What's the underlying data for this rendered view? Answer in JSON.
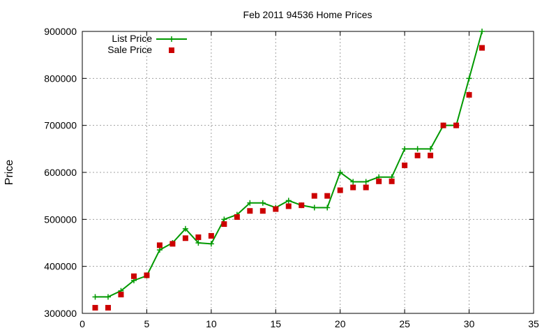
{
  "chart_data": {
    "type": "line",
    "title": "Feb 2011 94536 Home Prices",
    "xlabel": "",
    "ylabel": "Price",
    "xlim": [
      0,
      35
    ],
    "ylim": [
      300000,
      900000
    ],
    "xticks": [
      0,
      5,
      10,
      15,
      20,
      25,
      30,
      35
    ],
    "yticks": [
      300000,
      400000,
      500000,
      600000,
      700000,
      800000,
      900000
    ],
    "grid": true,
    "legend_position": "top-left",
    "series": [
      {
        "name": "List Price",
        "style": "line-plus",
        "color": "#009900",
        "x": [
          1,
          2,
          3,
          4,
          5,
          6,
          7,
          8,
          9,
          10,
          11,
          12,
          13,
          14,
          15,
          16,
          17,
          18,
          19,
          20,
          21,
          22,
          23,
          24,
          25,
          26,
          27,
          28,
          29,
          30,
          31
        ],
        "y": [
          335000,
          335000,
          348000,
          370000,
          380000,
          435000,
          450000,
          480000,
          450000,
          448000,
          500000,
          510000,
          535000,
          535000,
          525000,
          540000,
          530000,
          525000,
          525000,
          600000,
          580000,
          580000,
          590000,
          590000,
          650000,
          650000,
          650000,
          700000,
          700000,
          800000,
          900000
        ]
      },
      {
        "name": "Sale Price",
        "style": "square-marker",
        "color": "#cc0000",
        "x": [
          1,
          2,
          3,
          4,
          5,
          6,
          7,
          8,
          9,
          10,
          11,
          12,
          13,
          14,
          15,
          16,
          17,
          18,
          19,
          20,
          21,
          22,
          23,
          24,
          25,
          26,
          27,
          28,
          29,
          30,
          31
        ],
        "y": [
          312000,
          312000,
          340000,
          379000,
          381000,
          445000,
          448000,
          460000,
          462000,
          465000,
          490000,
          505000,
          518000,
          518000,
          522000,
          528000,
          530000,
          550000,
          550000,
          562000,
          568000,
          568000,
          581000,
          581000,
          615000,
          636000,
          636000,
          700000,
          700000,
          765000,
          865000
        ]
      }
    ]
  }
}
